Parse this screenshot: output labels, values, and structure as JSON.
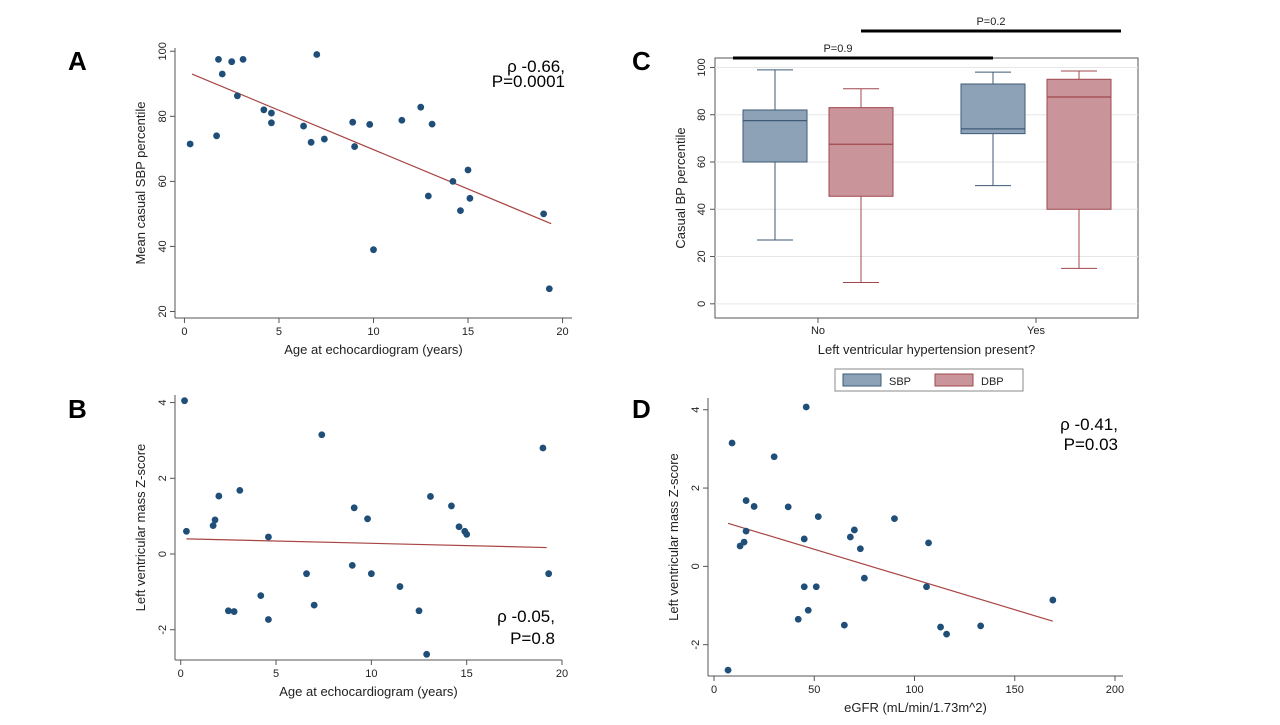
{
  "colors": {
    "point": "#1f4e79",
    "fit_line": "#a94442",
    "sbp_fill": "#8ea2b7",
    "sbp_stroke": "#3d5a76",
    "dbp_fill": "#c9959a",
    "dbp_stroke": "#a0474e",
    "axis": "#555555"
  },
  "chart_data": [
    {
      "panel": "A",
      "type": "scatter",
      "xlabel": "Age at echocardiogram (years)",
      "ylabel": "Mean casual SBP percentile",
      "xlim": [
        -0.5,
        20.5
      ],
      "ylim": [
        18,
        101
      ],
      "xticks": [
        0,
        5,
        10,
        15,
        20
      ],
      "yticks": [
        20,
        40,
        60,
        80,
        100
      ],
      "annotation": [
        "ρ -0.66,",
        "P=0.0001"
      ],
      "fit_line": [
        [
          0.4,
          93
        ],
        [
          19.4,
          47
        ]
      ],
      "points": [
        [
          0.3,
          71.5
        ],
        [
          1.7,
          74
        ],
        [
          1.8,
          97.5
        ],
        [
          2.0,
          93
        ],
        [
          2.5,
          96.8
        ],
        [
          3.1,
          97.5
        ],
        [
          2.8,
          86.3
        ],
        [
          4.2,
          82
        ],
        [
          4.6,
          81
        ],
        [
          4.6,
          78
        ],
        [
          6.3,
          77
        ],
        [
          6.7,
          72
        ],
        [
          7.0,
          99
        ],
        [
          7.4,
          73
        ],
        [
          8.9,
          78.2
        ],
        [
          9.0,
          70.7
        ],
        [
          9.8,
          77.5
        ],
        [
          10.0,
          39
        ],
        [
          11.5,
          78.8
        ],
        [
          12.5,
          82.8
        ],
        [
          12.9,
          55.5
        ],
        [
          13.1,
          77.6
        ],
        [
          14.2,
          60
        ],
        [
          14.6,
          51
        ],
        [
          15.0,
          63.5
        ],
        [
          15.1,
          54.8
        ],
        [
          19.0,
          50
        ],
        [
          19.3,
          27
        ]
      ]
    },
    {
      "panel": "B",
      "type": "scatter",
      "xlabel": "Age at echocardiogram (years)",
      "ylabel": "Left ventricular mass Z-score",
      "xlim": [
        -0.3,
        20.0
      ],
      "ylim": [
        -2.8,
        4.2
      ],
      "xticks": [
        0,
        5,
        10,
        15,
        20
      ],
      "yticks": [
        -2,
        0,
        2,
        4
      ],
      "annotation": [
        "ρ -0.05,",
        "P=0.8"
      ],
      "fit_line": [
        [
          0.3,
          0.4
        ],
        [
          19.2,
          0.17
        ]
      ],
      "points": [
        [
          0.2,
          4.05
        ],
        [
          0.3,
          0.6
        ],
        [
          1.7,
          0.75
        ],
        [
          1.8,
          0.9
        ],
        [
          2.0,
          1.53
        ],
        [
          2.5,
          -1.5
        ],
        [
          2.8,
          -1.52
        ],
        [
          3.1,
          1.68
        ],
        [
          4.2,
          -1.1
        ],
        [
          4.6,
          -1.73
        ],
        [
          4.6,
          0.45
        ],
        [
          6.6,
          -0.52
        ],
        [
          7.0,
          -1.35
        ],
        [
          7.4,
          3.15
        ],
        [
          9.0,
          -0.3
        ],
        [
          9.1,
          1.22
        ],
        [
          9.8,
          0.93
        ],
        [
          10.0,
          -0.52
        ],
        [
          11.5,
          -0.86
        ],
        [
          12.5,
          -1.5
        ],
        [
          12.9,
          -2.65
        ],
        [
          13.1,
          1.52
        ],
        [
          14.2,
          1.27
        ],
        [
          14.6,
          0.72
        ],
        [
          14.9,
          0.6
        ],
        [
          15.0,
          0.52
        ],
        [
          19.0,
          2.8
        ],
        [
          19.3,
          -0.52
        ]
      ]
    },
    {
      "panel": "C",
      "type": "box",
      "xlabel": "Left ventricular hypertension present?",
      "ylabel": "Casual BP percentile",
      "categories": [
        "No",
        "Yes"
      ],
      "ylim": [
        -6,
        104
      ],
      "yticks": [
        0,
        20,
        40,
        60,
        80,
        100
      ],
      "series": [
        {
          "name": "SBP",
          "boxes": [
            {
              "min": 27,
              "q1": 60,
              "median": 77.5,
              "q3": 82,
              "max": 99
            },
            {
              "min": 50,
              "q1": 72,
              "median": 74,
              "q3": 93,
              "max": 98
            }
          ]
        },
        {
          "name": "DBP",
          "boxes": [
            {
              "min": 9,
              "q1": 45.5,
              "median": 67.5,
              "q3": 83,
              "max": 91
            },
            {
              "min": 15,
              "q1": 40,
              "median": 87.5,
              "q3": 95,
              "max": 98.5
            }
          ]
        }
      ],
      "comparisons": [
        {
          "label": "P=0.9",
          "from": "No SBP",
          "to": "Yes SBP"
        },
        {
          "label": "P=0.2",
          "from": "No DBP",
          "to": "Yes DBP"
        }
      ],
      "legend": {
        "placement": "bottom",
        "items": [
          "SBP",
          "DBP"
        ]
      }
    },
    {
      "panel": "D",
      "type": "scatter",
      "xlabel": "eGFR (mL/min/1.73m^2)",
      "ylabel": "Left ventricular mass Z-score",
      "xlim": [
        -3,
        204
      ],
      "ylim": [
        -2.8,
        4.3
      ],
      "xticks": [
        0,
        50,
        100,
        150,
        200
      ],
      "yticks": [
        -2,
        0,
        2,
        4
      ],
      "annotation": [
        "ρ -0.41,",
        "P=0.03"
      ],
      "fit_line": [
        [
          7,
          1.1
        ],
        [
          169,
          -1.4
        ]
      ],
      "points": [
        [
          7,
          -2.65
        ],
        [
          9,
          3.15
        ],
        [
          13,
          0.52
        ],
        [
          15,
          0.62
        ],
        [
          16,
          0.9
        ],
        [
          16,
          1.68
        ],
        [
          20,
          1.53
        ],
        [
          30,
          2.8
        ],
        [
          37,
          1.52
        ],
        [
          42,
          -1.35
        ],
        [
          45,
          -0.52
        ],
        [
          45,
          0.7
        ],
        [
          46,
          4.07
        ],
        [
          47,
          -1.12
        ],
        [
          51,
          -0.52
        ],
        [
          52,
          1.27
        ],
        [
          65,
          -1.5
        ],
        [
          68,
          0.75
        ],
        [
          70,
          0.93
        ],
        [
          73,
          0.45
        ],
        [
          75,
          -0.3
        ],
        [
          90,
          1.22
        ],
        [
          106,
          -0.52
        ],
        [
          107,
          0.6
        ],
        [
          113,
          -1.55
        ],
        [
          116,
          -1.73
        ],
        [
          133,
          -1.52
        ],
        [
          169,
          -0.86
        ]
      ]
    }
  ]
}
